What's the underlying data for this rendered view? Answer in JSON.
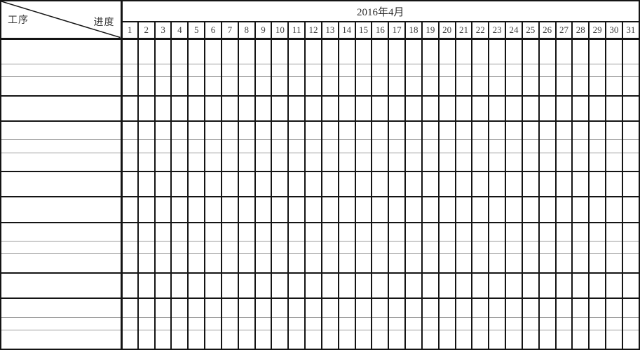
{
  "header": {
    "corner": {
      "bottom_left_label": "工序",
      "top_right_label": "进度"
    },
    "month_title": "2016年4月",
    "days": [
      "1",
      "2",
      "3",
      "4",
      "5",
      "6",
      "7",
      "8",
      "9",
      "10",
      "11",
      "12",
      "13",
      "14",
      "15",
      "16",
      "17",
      "18",
      "19",
      "20",
      "21",
      "22",
      "23",
      "24",
      "25",
      "26",
      "27",
      "28",
      "29",
      "30",
      "31"
    ]
  },
  "table": {
    "body_row_count": 16,
    "day_column_count": 31
  },
  "colors": {
    "grid_line": "#141414",
    "thin_row_line": "#9b9b9b",
    "text": "#3a3a3a",
    "background": "#ffffff"
  }
}
